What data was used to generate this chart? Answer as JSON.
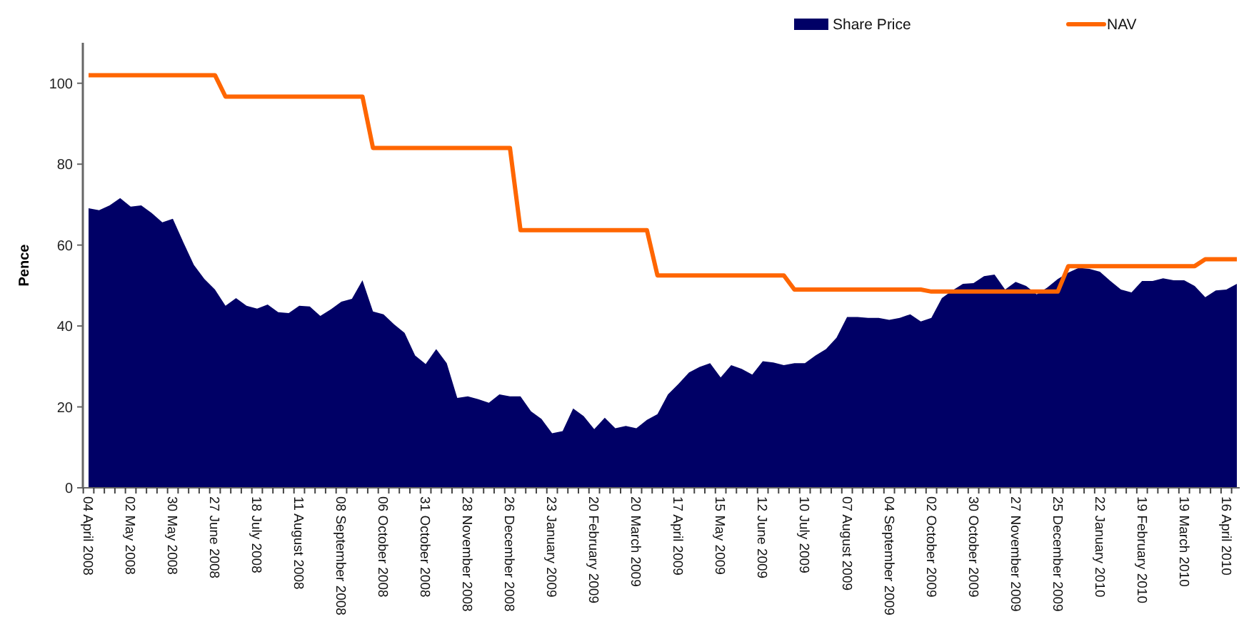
{
  "chart_data": {
    "type": "area",
    "ylabel": "Pence",
    "ylim": [
      0,
      110
    ],
    "yticks": [
      0,
      20,
      40,
      60,
      80,
      100
    ],
    "grid": false,
    "legend": "top right",
    "categories": [
      "04 April 2008",
      null,
      null,
      null,
      "02 May 2008",
      null,
      null,
      null,
      "30 May 2008",
      null,
      null,
      null,
      "27 June 2008",
      null,
      null,
      null,
      "18 July 2008",
      null,
      null,
      null,
      "11 August 2008",
      null,
      null,
      null,
      "08 September 2008",
      null,
      null,
      null,
      "06 October 2008",
      null,
      null,
      null,
      "31 October 2008",
      null,
      null,
      null,
      "28 November 2008",
      null,
      null,
      null,
      "26 December 2008",
      null,
      null,
      null,
      "23 January 2009",
      null,
      null,
      null,
      "20 February 2009",
      null,
      null,
      null,
      "20 March 2009",
      null,
      null,
      null,
      "17 April 2009",
      null,
      null,
      null,
      "15 May 2009",
      null,
      null,
      null,
      "12 June 2009",
      null,
      null,
      null,
      "10 July 2009",
      null,
      null,
      null,
      "07 August 2009",
      null,
      null,
      null,
      "04 September 2009",
      null,
      null,
      null,
      "02 October 2009",
      null,
      null,
      null,
      "30 October 2009",
      null,
      null,
      null,
      "27 November 2009",
      null,
      null,
      null,
      "25 December 2009",
      null,
      null,
      null,
      "22 January 2010",
      null,
      null,
      null,
      "19 February 2010",
      null,
      null,
      null,
      "19 March 2010",
      null,
      null,
      null,
      "16 April 2010",
      null
    ],
    "series": [
      {
        "name": "Share Price",
        "color": "#000066",
        "values": [
          69.1,
          68.6,
          69.8,
          71.6,
          69.5,
          69.8,
          67.9,
          65.6,
          66.5,
          60.7,
          55.1,
          51.6,
          49.0,
          45.0,
          46.9,
          45.0,
          44.3,
          45.3,
          43.4,
          43.2,
          45.0,
          44.8,
          42.5,
          44.1,
          46.0,
          46.7,
          51.3,
          43.6,
          42.9,
          40.4,
          38.3,
          32.7,
          30.6,
          34.3,
          30.8,
          22.2,
          22.6,
          21.9,
          21.0,
          23.1,
          22.6,
          22.6,
          18.9,
          17.0,
          13.5,
          14.0,
          19.6,
          17.7,
          14.5,
          17.3,
          14.7,
          15.3,
          14.7,
          16.8,
          18.2,
          23.1,
          25.7,
          28.5,
          29.9,
          30.8,
          27.3,
          30.3,
          29.4,
          28.0,
          31.3,
          31.0,
          30.3,
          30.8,
          30.8,
          32.7,
          34.3,
          37.1,
          42.2,
          42.2,
          42.0,
          42.0,
          41.5,
          42.0,
          42.9,
          41.1,
          42.0,
          46.9,
          48.8,
          50.4,
          50.6,
          52.3,
          52.7,
          49.0,
          50.9,
          49.9,
          47.8,
          49.5,
          51.6,
          53.2,
          54.4,
          54.1,
          53.4,
          51.1,
          49.0,
          48.3,
          51.1,
          51.1,
          51.8,
          51.3,
          51.3,
          49.9,
          47.1,
          48.8,
          49.0,
          50.4
        ]
      },
      {
        "name": "NAV",
        "type": "line",
        "color": "#ff6600",
        "values": [
          102,
          102,
          102,
          102,
          102,
          102,
          102,
          102,
          102,
          102,
          102,
          102,
          102,
          96.7,
          96.7,
          96.7,
          96.7,
          96.7,
          96.7,
          96.7,
          96.7,
          96.7,
          96.7,
          96.7,
          96.7,
          96.7,
          96.7,
          84,
          84,
          84,
          84,
          84,
          84,
          84,
          84,
          84,
          84,
          84,
          84,
          84,
          84,
          63.7,
          63.7,
          63.7,
          63.7,
          63.7,
          63.7,
          63.7,
          63.7,
          63.7,
          63.7,
          63.7,
          63.7,
          63.7,
          52.5,
          52.5,
          52.5,
          52.5,
          52.5,
          52.5,
          52.5,
          52.5,
          52.5,
          52.5,
          52.5,
          52.5,
          52.5,
          49,
          49,
          49,
          49,
          49,
          49,
          49,
          49,
          49,
          49,
          49,
          49,
          49,
          48.5,
          48.5,
          48.5,
          48.5,
          48.5,
          48.5,
          48.5,
          48.5,
          48.5,
          48.5,
          48.5,
          48.5,
          48.5,
          54.8,
          54.8,
          54.8,
          54.8,
          54.8,
          54.8,
          54.8,
          54.8,
          54.8,
          54.8,
          54.8,
          54.8,
          54.8,
          56.5,
          56.5,
          56.5,
          56.5
        ]
      }
    ]
  }
}
